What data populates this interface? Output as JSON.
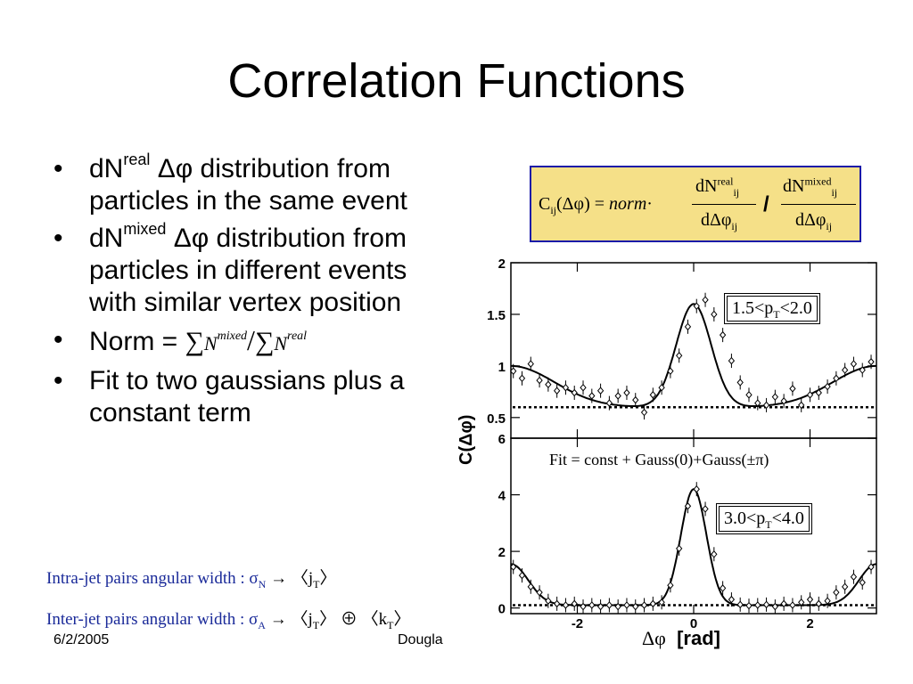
{
  "title": "Correlation Functions",
  "bullets": {
    "b1": {
      "a": "dN",
      "sup": "real",
      "b": " Δφ distribution from particles in the same event"
    },
    "b2": {
      "a": "dN",
      "sup": "mixed",
      "b": " Δφ distribution from particles in different  events with similar vertex position"
    },
    "b3": {
      "a": "Norm = ",
      "sum": "∑",
      "n": "N",
      "sup_mixed": "mixed",
      "slash": "/",
      "sup_real": "real"
    },
    "b4": "Fit to two gaussians plus a constant term"
  },
  "formula": {
    "lhs_c": "C",
    "lhs_sub": "ij",
    "lhs_arg": "(Δφ) = ",
    "norm": "norm",
    "dot": "·",
    "num_d": "dN",
    "sup_real": "real",
    "sup_mixed": "mixed",
    "sub_ij": "ij",
    "den": "dΔφ",
    "slash": "/"
  },
  "notes": {
    "intra": {
      "text": "Intra-jet pairs angular width : σ",
      "sub": "N",
      "rest": " → ",
      "ang": "〈j",
      "ang_sub": "T",
      "ang_end": "〉"
    },
    "inter": {
      "text": "Inter-jet pairs angular width : σ",
      "sub": "A",
      "rest": " → ",
      "a1": "〈j",
      "a1_sub": "T",
      "a1_end": "〉",
      "op": " ⊕ ",
      "a2": "〈k",
      "a2_sub": "T",
      "a2_end": "〉"
    }
  },
  "footer": {
    "date": "6/2/2005",
    "author": "Dougla"
  },
  "chart_data": [
    {
      "type": "scatter",
      "label": {
        "a": "1.5<p",
        "sub": "T",
        "b": "<2.0"
      },
      "ylim": [
        0.3,
        2.0
      ],
      "yticks": [
        "2",
        "1.5",
        "1",
        "0.5"
      ],
      "ytick_values": [
        2,
        1.5,
        1,
        0.5
      ],
      "xlim": [
        -3.14159,
        3.14159
      ],
      "constant_line": 0.6,
      "points": {
        "x": [
          -3.1,
          -2.95,
          -2.8,
          -2.65,
          -2.5,
          -2.35,
          -2.2,
          -2.05,
          -1.9,
          -1.75,
          -1.6,
          -1.45,
          -1.3,
          -1.15,
          -1.0,
          -0.85,
          -0.7,
          -0.55,
          -0.4,
          -0.25,
          -0.1,
          0.05,
          0.2,
          0.35,
          0.5,
          0.65,
          0.8,
          0.95,
          1.1,
          1.25,
          1.4,
          1.55,
          1.7,
          1.85,
          2.0,
          2.15,
          2.3,
          2.45,
          2.6,
          2.75,
          2.9,
          3.05
        ],
        "y": [
          0.95,
          0.88,
          1.02,
          0.86,
          0.82,
          0.76,
          0.79,
          0.74,
          0.79,
          0.71,
          0.76,
          0.64,
          0.71,
          0.74,
          0.67,
          0.55,
          0.72,
          0.79,
          0.95,
          1.1,
          1.38,
          1.58,
          1.64,
          1.5,
          1.3,
          1.05,
          0.84,
          0.72,
          0.64,
          0.62,
          0.7,
          0.66,
          0.78,
          0.62,
          0.72,
          0.74,
          0.8,
          0.88,
          0.96,
          1.02,
          0.96,
          1.04
        ]
      },
      "fit": {
        "c": 0.6,
        "a0": 1.0,
        "s0": 0.3,
        "api": 0.4,
        "spi": 0.75
      }
    },
    {
      "type": "scatter",
      "label": {
        "a": "3.0<p",
        "sub": "T",
        "b": "<4.0"
      },
      "fit_label": "Fit = const + Gauss(0)+Gauss(±π)",
      "ylim": [
        -0.2,
        6.0
      ],
      "yticks": [
        "6",
        "4",
        "2",
        "0"
      ],
      "ytick_values": [
        6,
        4,
        2,
        0
      ],
      "xlim": [
        -3.14159,
        3.14159
      ],
      "xticks": [
        "-2",
        "0",
        "2"
      ],
      "xtick_values": [
        -2,
        0,
        2
      ],
      "constant_line": 0.1,
      "ylabel": "C(Δφ)",
      "xlabel_sym": "Δφ",
      "xlabel_unit": "[rad]",
      "points": {
        "x": [
          -3.1,
          -2.95,
          -2.8,
          -2.65,
          -2.5,
          -2.35,
          -2.2,
          -2.05,
          -1.9,
          -1.75,
          -1.6,
          -1.45,
          -1.3,
          -1.15,
          -1.0,
          -0.85,
          -0.7,
          -0.55,
          -0.4,
          -0.25,
          -0.1,
          0.05,
          0.2,
          0.35,
          0.5,
          0.65,
          0.8,
          0.95,
          1.1,
          1.25,
          1.4,
          1.55,
          1.7,
          1.85,
          2.0,
          2.15,
          2.3,
          2.45,
          2.6,
          2.75,
          2.9,
          3.05
        ],
        "y": [
          1.45,
          1.15,
          0.75,
          0.55,
          0.25,
          0.15,
          0.1,
          0.15,
          0.05,
          0.1,
          0.05,
          0.1,
          0.05,
          0.1,
          0.05,
          0.1,
          0.15,
          0.2,
          0.8,
          2.1,
          3.6,
          4.2,
          3.5,
          1.9,
          0.7,
          0.3,
          0.12,
          0.08,
          0.1,
          0.12,
          0.05,
          0.15,
          0.1,
          0.2,
          0.3,
          0.15,
          0.25,
          0.55,
          0.75,
          1.1,
          0.9,
          1.45
        ]
      },
      "fit": {
        "c": 0.1,
        "a0": 4.1,
        "s0": 0.22,
        "api": 1.45,
        "spi": 0.3
      }
    }
  ]
}
